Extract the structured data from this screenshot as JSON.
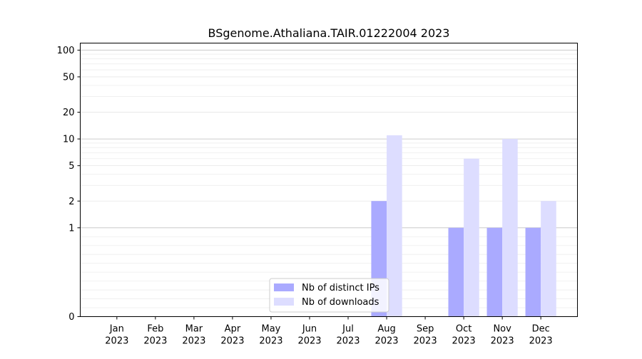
{
  "chart_data": {
    "type": "bar",
    "title": "BSgenome.Athaliana.TAIR.01222004 2023",
    "xlabel": "",
    "ylabel": "",
    "y_scale": "symlog",
    "ylim": [
      0,
      120
    ],
    "grid": true,
    "legend_position": "bottom-center",
    "categories": [
      [
        "Jan",
        "2023"
      ],
      [
        "Feb",
        "2023"
      ],
      [
        "Mar",
        "2023"
      ],
      [
        "Apr",
        "2023"
      ],
      [
        "May",
        "2023"
      ],
      [
        "Jun",
        "2023"
      ],
      [
        "Jul",
        "2023"
      ],
      [
        "Aug",
        "2023"
      ],
      [
        "Sep",
        "2023"
      ],
      [
        "Oct",
        "2023"
      ],
      [
        "Nov",
        "2023"
      ],
      [
        "Dec",
        "2023"
      ]
    ],
    "y_ticks": [
      0,
      1,
      2,
      5,
      10,
      20,
      50,
      100
    ],
    "y_tick_labels": [
      "0",
      "1",
      "2",
      "5",
      "10",
      "20",
      "50",
      "100"
    ],
    "series": [
      {
        "name": "Nb of distinct IPs",
        "color": "#aaaaff",
        "values": [
          0,
          0,
          0,
          0,
          0,
          0,
          0,
          2,
          0,
          1,
          1,
          1
        ]
      },
      {
        "name": "Nb of downloads",
        "color": "#ddddff",
        "values": [
          0,
          0,
          0,
          0,
          0,
          0,
          0,
          11,
          0,
          6,
          10,
          2
        ]
      }
    ]
  }
}
